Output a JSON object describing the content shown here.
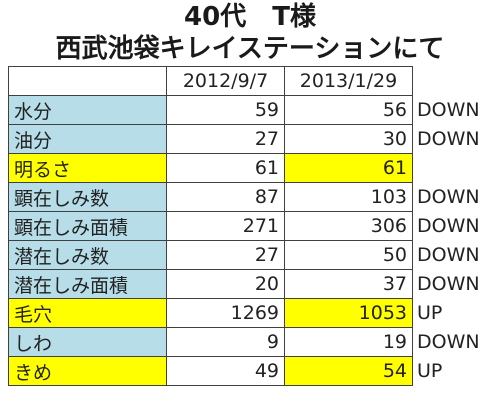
{
  "title_line1": "40代　T様",
  "title_line2": "西武池袋キレイステーションにて",
  "colors": {
    "label_bg": "#b7dde8",
    "highlight": "#ffff00"
  },
  "table": {
    "headers": [
      "2012/9/7",
      "2013/1/29"
    ],
    "rows": [
      {
        "label": "水分",
        "v1": "59",
        "v2": "56",
        "note": "DOWN",
        "highlight": false
      },
      {
        "label": "油分",
        "v1": "27",
        "v2": "30",
        "note": "DOWN",
        "highlight": false
      },
      {
        "label": "明るさ",
        "v1": "61",
        "v2": "61",
        "note": "",
        "highlight": true
      },
      {
        "label": "顕在しみ数",
        "v1": "87",
        "v2": "103",
        "note": "DOWN",
        "highlight": false
      },
      {
        "label": "顕在しみ面積",
        "v1": "271",
        "v2": "306",
        "note": "DOWN",
        "highlight": false
      },
      {
        "label": "潜在しみ数",
        "v1": "27",
        "v2": "50",
        "note": "DOWN",
        "highlight": false
      },
      {
        "label": "潜在しみ面積",
        "v1": "20",
        "v2": "37",
        "note": "DOWN",
        "highlight": false
      },
      {
        "label": "毛穴",
        "v1": "1269",
        "v2": "1053",
        "note": "UP",
        "highlight": true
      },
      {
        "label": "しわ",
        "v1": "9",
        "v2": "19",
        "note": "DOWN",
        "highlight": false
      },
      {
        "label": "きめ",
        "v1": "49",
        "v2": "54",
        "note": "UP",
        "highlight": true
      }
    ]
  }
}
